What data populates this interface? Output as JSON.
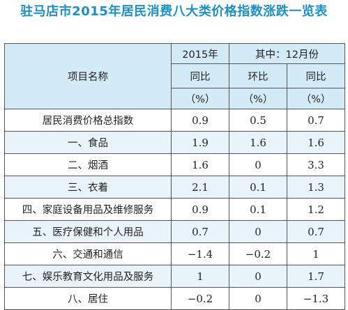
{
  "title": "驻马店市2015年居民消费八大类价格指数涨跌一览表",
  "header": {
    "item_name": "项目名称",
    "year_2015": "2015年",
    "december_group": "其中：12月份",
    "col1_label": "同比",
    "col2_label": "环比",
    "col3_label": "同比",
    "unit": "（%）"
  },
  "rows": [
    {
      "name": "居民消费价格总指数",
      "yoy_2015": "0.9",
      "mom_dec": "0.5",
      "yoy_dec": "0.7"
    },
    {
      "name": "一、食品",
      "yoy_2015": "1.9",
      "mom_dec": "1.6",
      "yoy_dec": "1.6"
    },
    {
      "name": "二、烟酒",
      "yoy_2015": "1.6",
      "mom_dec": "0",
      "yoy_dec": "3.3"
    },
    {
      "name": "三、衣着",
      "yoy_2015": "2.1",
      "mom_dec": "0.1",
      "yoy_dec": "1.3"
    },
    {
      "name": "四、家庭设备用品及维修服务",
      "yoy_2015": "0.9",
      "mom_dec": "0.1",
      "yoy_dec": "1.2"
    },
    {
      "name": "五、医疗保健和个人用品",
      "yoy_2015": "0.7",
      "mom_dec": "0",
      "yoy_dec": "0.7"
    },
    {
      "name": "六、交通和通信",
      "yoy_2015": "−1.4",
      "mom_dec": "−0.2",
      "yoy_dec": "1"
    },
    {
      "name": "七、娱乐教育文化用品及服务",
      "yoy_2015": "1",
      "mom_dec": "0",
      "yoy_dec": "1.7"
    },
    {
      "name": "八、居住",
      "yoy_2015": "−0.2",
      "mom_dec": "0",
      "yoy_dec": "−1.3"
    }
  ]
}
